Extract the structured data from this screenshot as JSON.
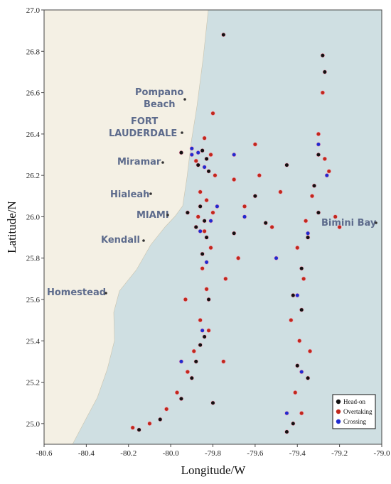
{
  "chart_data": {
    "type": "scatter",
    "xlabel": "Longitude/W",
    "ylabel": "Latitude/N",
    "xlim": [
      -80.6,
      -79.0
    ],
    "ylim": [
      24.9,
      27.0
    ],
    "xticks": [
      -80.6,
      -80.4,
      -80.2,
      {
        "value": -80.0,
        "label": "-80.0"
      },
      -79.8,
      -79.6,
      -79.4,
      -79.2,
      {
        "value": -79.0,
        "label": "-79.0"
      }
    ],
    "yticks": [
      {
        "value": 25.0,
        "label": "25.0"
      },
      25.2,
      25.4,
      25.6,
      25.8,
      {
        "value": 26.0,
        "label": "26.0"
      },
      26.2,
      26.4,
      26.6,
      26.8,
      {
        "value": 27.0,
        "label": "27.0"
      }
    ],
    "annotations": [
      "Pompano",
      "Beach",
      "FORT",
      "LAUDERDALE",
      "Miramar",
      "Hialeah",
      "MIAMI",
      "Kendall",
      "Homestead",
      "Bimini Bay"
    ],
    "legend_position": "lower right",
    "series": [
      {
        "name": "Head-on",
        "color": "#111111",
        "x": [
          -79.85,
          -79.83,
          -79.87,
          -79.82,
          -79.86,
          -79.84,
          -79.88,
          -79.83,
          -79.85,
          -79.82,
          -79.84,
          -79.86,
          -79.88,
          -79.9,
          -79.95,
          -80.05,
          -80.15,
          -79.75,
          -79.28,
          -79.27,
          -79.3,
          -79.32,
          -79.3,
          -79.35,
          -79.38,
          -79.42,
          -79.38,
          -79.4,
          -79.35,
          -79.42,
          -79.45,
          -79.6,
          -79.45,
          -79.7,
          -79.95,
          -79.8,
          -79.92,
          -79.55
        ],
        "values": [
          26.32,
          26.28,
          26.25,
          26.22,
          26.05,
          25.98,
          25.95,
          25.9,
          25.82,
          25.6,
          25.42,
          25.38,
          25.3,
          25.22,
          25.12,
          25.02,
          24.97,
          26.88,
          26.78,
          26.7,
          26.3,
          26.15,
          26.02,
          25.9,
          25.75,
          25.62,
          25.55,
          25.28,
          25.22,
          25.0,
          24.96,
          26.1,
          26.25,
          25.92,
          26.31,
          25.1,
          26.02,
          25.97
        ]
      },
      {
        "name": "Overtaking",
        "color": "#c0281c",
        "x": [
          -79.84,
          -79.81,
          -79.88,
          -79.79,
          -79.86,
          -79.83,
          -79.8,
          -79.87,
          -79.84,
          -79.81,
          -79.85,
          -79.83,
          -79.86,
          -79.82,
          -79.89,
          -79.92,
          -79.97,
          -80.02,
          -80.1,
          -80.18,
          -79.7,
          -79.65,
          -79.58,
          -79.52,
          -79.48,
          -79.68,
          -79.74,
          -79.3,
          -79.27,
          -79.25,
          -79.33,
          -79.36,
          -79.4,
          -79.37,
          -79.43,
          -79.39,
          -79.34,
          -79.41,
          -79.38,
          -79.22,
          -79.28,
          -79.6,
          -79.8,
          -79.93,
          -79.75,
          -79.2
        ],
        "values": [
          26.38,
          26.3,
          26.27,
          26.2,
          26.12,
          26.08,
          26.02,
          26.0,
          25.93,
          25.85,
          25.75,
          25.65,
          25.5,
          25.45,
          25.35,
          25.25,
          25.15,
          25.07,
          25.0,
          24.98,
          26.18,
          26.05,
          26.2,
          25.95,
          26.12,
          25.8,
          25.7,
          26.4,
          26.28,
          26.22,
          26.1,
          25.98,
          25.85,
          25.7,
          25.5,
          25.4,
          25.35,
          25.15,
          25.05,
          26.0,
          26.6,
          26.35,
          26.5,
          25.6,
          25.3,
          25.95
        ]
      },
      {
        "name": "Crossing",
        "color": "#1f2bd0",
        "x": [
          -79.87,
          -79.84,
          -79.9,
          -79.81,
          -79.86,
          -79.83,
          -79.78,
          -79.85,
          -79.3,
          -79.26,
          -79.35,
          -79.4,
          -79.38,
          -79.45,
          -79.65,
          -79.7,
          -79.95,
          -79.5,
          -79.9
        ],
        "values": [
          26.31,
          26.24,
          26.3,
          25.98,
          25.93,
          25.78,
          26.05,
          25.45,
          26.35,
          26.2,
          25.92,
          25.62,
          25.25,
          25.05,
          26.0,
          26.3,
          25.3,
          25.8,
          26.33
        ]
      }
    ]
  }
}
